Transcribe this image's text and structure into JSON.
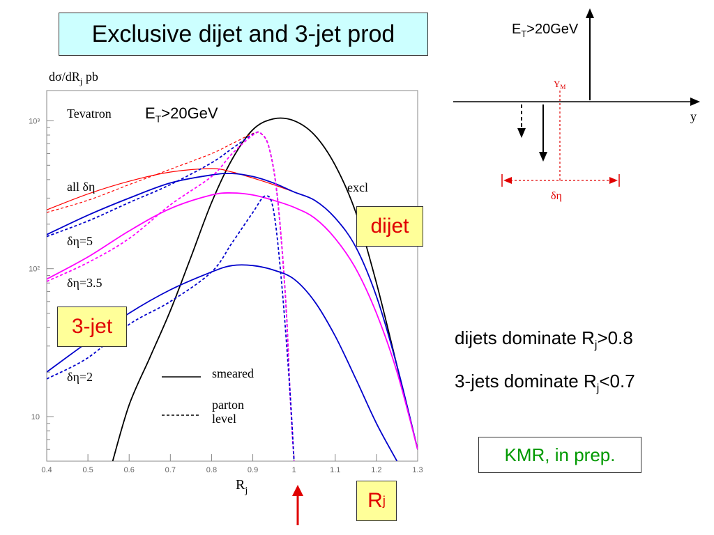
{
  "title": "Exclusive dijet and 3-jet prod",
  "chart_data": {
    "type": "line",
    "ylabel": "dσ/dRj  pb",
    "xlabel": "Rj",
    "xlim": [
      0.4,
      1.3
    ],
    "ylim": [
      5,
      1600
    ],
    "yscale": "log",
    "xticks": [
      "0.4",
      "0.5",
      "0.6",
      "0.7",
      "0.8",
      "0.9",
      "1",
      "1.1",
      "1.2",
      "1.3"
    ],
    "yticks": [
      "10",
      "10²",
      "10³"
    ],
    "annotations": {
      "tevatron": "Tevatron",
      "et_cut": "ET>20GeV",
      "all_deta": "all δη",
      "deta5": "δη=5",
      "deta35": "δη=3.5",
      "deta2": "δη=2",
      "excl": "excl"
    },
    "legend": {
      "solid": "smeared",
      "dashed": "parton level"
    },
    "series": [
      {
        "color": "#000000",
        "style": "solid",
        "x": [
          0.56,
          0.6,
          0.65,
          0.7,
          0.75,
          0.8,
          0.85,
          0.9,
          0.95,
          1.0,
          1.05,
          1.1,
          1.15,
          1.2,
          1.25,
          1.3
        ],
        "y": [
          5,
          12,
          25,
          52,
          120,
          280,
          550,
          870,
          1030,
          1000,
          800,
          500,
          240,
          80,
          22,
          6
        ]
      },
      {
        "color": "#ff0000",
        "style": "solid",
        "x": [
          0.4,
          0.5,
          0.6,
          0.7,
          0.8,
          0.85,
          0.9,
          0.95,
          1.0,
          1.05,
          1.1,
          1.15,
          1.2,
          1.25,
          1.3
        ],
        "y": [
          250,
          320,
          390,
          450,
          475,
          450,
          410,
          370,
          330,
          290,
          220,
          140,
          65,
          22,
          6
        ]
      },
      {
        "color": "#ff0000",
        "style": "dashed",
        "x": [
          0.4,
          0.5,
          0.6,
          0.7,
          0.8,
          0.85,
          0.9,
          0.92,
          0.94,
          0.96,
          0.98,
          0.99,
          1.0
        ],
        "y": [
          240,
          290,
          370,
          470,
          600,
          700,
          820,
          820,
          650,
          300,
          60,
          15,
          5
        ]
      },
      {
        "color": "#0000cc",
        "style": "solid",
        "x": [
          0.4,
          0.5,
          0.6,
          0.7,
          0.8,
          0.85,
          0.9,
          0.95,
          1.0,
          1.05,
          1.1,
          1.15,
          1.2,
          1.25,
          1.3
        ],
        "y": [
          170,
          230,
          300,
          380,
          430,
          440,
          420,
          380,
          330,
          290,
          220,
          140,
          65,
          22,
          6
        ]
      },
      {
        "color": "#0000cc",
        "style": "dashed",
        "x": [
          0.4,
          0.5,
          0.6,
          0.7,
          0.8,
          0.85,
          0.9,
          0.92,
          0.94,
          0.96,
          0.98,
          0.99,
          1.0
        ],
        "y": [
          165,
          210,
          280,
          370,
          520,
          650,
          810,
          820,
          650,
          300,
          60,
          15,
          5
        ]
      },
      {
        "color": "#ff00ff",
        "style": "solid",
        "x": [
          0.4,
          0.5,
          0.6,
          0.7,
          0.8,
          0.85,
          0.9,
          0.95,
          1.0,
          1.05,
          1.1,
          1.15,
          1.2,
          1.25,
          1.3
        ],
        "y": [
          85,
          120,
          180,
          255,
          315,
          325,
          315,
          290,
          260,
          220,
          160,
          100,
          50,
          20,
          6
        ]
      },
      {
        "color": "#ff00ff",
        "style": "dashed",
        "x": [
          0.4,
          0.5,
          0.6,
          0.7,
          0.8,
          0.85,
          0.9,
          0.92,
          0.94,
          0.96,
          0.98,
          0.99,
          1.0
        ],
        "y": [
          82,
          110,
          160,
          270,
          420,
          600,
          800,
          820,
          650,
          300,
          60,
          15,
          5
        ]
      },
      {
        "color": "#0000cc",
        "style": "solid",
        "x": [
          0.4,
          0.5,
          0.6,
          0.7,
          0.8,
          0.85,
          0.9,
          0.95,
          1.0,
          1.05,
          1.1,
          1.15,
          1.2,
          1.25
        ],
        "y": [
          20,
          32,
          50,
          72,
          95,
          105,
          105,
          98,
          85,
          60,
          35,
          18,
          9,
          5
        ]
      },
      {
        "color": "#0000cc",
        "style": "dashed",
        "x": [
          0.4,
          0.5,
          0.6,
          0.7,
          0.8,
          0.85,
          0.9,
          0.93,
          0.95,
          0.97,
          0.99,
          1.0
        ],
        "y": [
          18,
          25,
          42,
          60,
          95,
          150,
          240,
          310,
          250,
          80,
          15,
          5
        ]
      }
    ]
  },
  "diagram": {
    "et_label": "ET>20GeV",
    "ym_label": "YM",
    "axis_label": "y",
    "deta_label": "δη"
  },
  "boxes": {
    "dijet": "dijet",
    "threejet": "3-jet",
    "rj": "Rj"
  },
  "notes": {
    "dijets": "dijets dominate Rj>0.8",
    "threejets": "3-jets dominate Rj<0.7",
    "kmr": "KMR, in prep."
  }
}
